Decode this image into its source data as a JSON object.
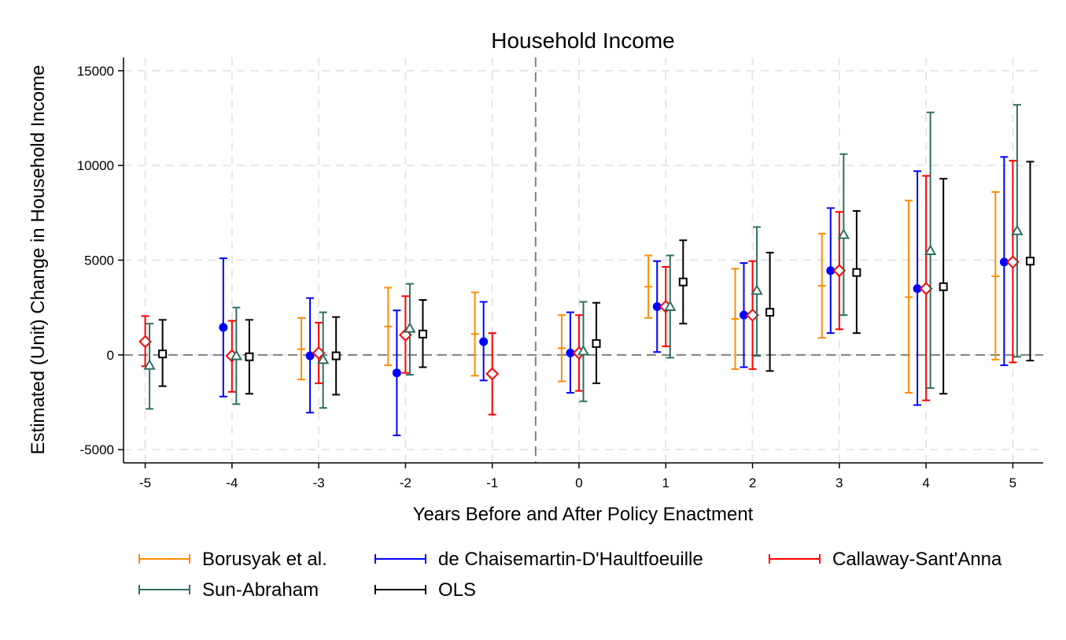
{
  "chart_data": {
    "type": "scatter",
    "subtype": "event-study coefficient plot with confidence intervals",
    "title": "Household Income",
    "xlabel": "Years Before and After Policy Enactment",
    "ylabel": "Estimated (Unit) Change in Household Income",
    "x_ticks": [
      -5,
      -4,
      -3,
      -2,
      -1,
      0,
      1,
      2,
      3,
      4,
      5
    ],
    "y_ticks": [
      -5000,
      0,
      5000,
      10000,
      15000
    ],
    "xlim": [
      -5.25,
      5.35
    ],
    "ylim": [
      -5700,
      15700
    ],
    "grid": true,
    "reference_lines": {
      "horizontal_y": 0,
      "vertical_x": -0.5
    },
    "legend_position": "bottom",
    "series": [
      {
        "name": "Borusyak et al.",
        "color": "#ff8c00",
        "marker": "none",
        "offset": -0.2,
        "points": [
          {
            "x": -3,
            "est": 300,
            "lo": -1300,
            "hi": 1950
          },
          {
            "x": -2,
            "est": 1500,
            "lo": -550,
            "hi": 3550
          },
          {
            "x": -1,
            "est": 1100,
            "lo": -1100,
            "hi": 3300
          },
          {
            "x": 0,
            "est": 350,
            "lo": -1400,
            "hi": 2100
          },
          {
            "x": 1,
            "est": 3600,
            "lo": 1950,
            "hi": 5250
          },
          {
            "x": 2,
            "est": 1900,
            "lo": -750,
            "hi": 4550
          },
          {
            "x": 3,
            "est": 3650,
            "lo": 900,
            "hi": 6400
          },
          {
            "x": 4,
            "est": 3050,
            "lo": -2000,
            "hi": 8150
          },
          {
            "x": 5,
            "est": 4150,
            "lo": -250,
            "hi": 8600
          }
        ]
      },
      {
        "name": "de Chaisemartin-D'Haultfoeuille",
        "color": "#0000ff",
        "marker": "circle",
        "offset": -0.1,
        "points": [
          {
            "x": -4,
            "est": 1450,
            "lo": -2200,
            "hi": 5100
          },
          {
            "x": -3,
            "est": -50,
            "lo": -3050,
            "hi": 3000
          },
          {
            "x": -2,
            "est": -950,
            "lo": -4250,
            "hi": 2350
          },
          {
            "x": -1,
            "est": 700,
            "lo": -1350,
            "hi": 2800
          },
          {
            "x": 0,
            "est": 100,
            "lo": -2000,
            "hi": 2250
          },
          {
            "x": 1,
            "est": 2550,
            "lo": 150,
            "hi": 4950
          },
          {
            "x": 2,
            "est": 2100,
            "lo": -650,
            "hi": 4850
          },
          {
            "x": 3,
            "est": 4450,
            "lo": 1150,
            "hi": 7750
          },
          {
            "x": 4,
            "est": 3500,
            "lo": -2650,
            "hi": 9700
          },
          {
            "x": 5,
            "est": 4900,
            "lo": -550,
            "hi": 10450
          }
        ]
      },
      {
        "name": "Callaway-Sant'Anna",
        "color": "#ff0000",
        "marker": "diamond",
        "offset": 0,
        "points": [
          {
            "x": -5,
            "est": 700,
            "lo": -600,
            "hi": 2050
          },
          {
            "x": -4,
            "est": -50,
            "lo": -1950,
            "hi": 1800
          },
          {
            "x": -3,
            "est": 100,
            "lo": -1500,
            "hi": 1700
          },
          {
            "x": -2,
            "est": 1050,
            "lo": -950,
            "hi": 3100
          },
          {
            "x": -1,
            "est": -1000,
            "lo": -3150,
            "hi": 1150
          },
          {
            "x": 0,
            "est": 100,
            "lo": -1900,
            "hi": 2100
          },
          {
            "x": 1,
            "est": 2550,
            "lo": 450,
            "hi": 4650
          },
          {
            "x": 2,
            "est": 2100,
            "lo": -750,
            "hi": 4950
          },
          {
            "x": 3,
            "est": 4450,
            "lo": 1350,
            "hi": 7550
          },
          {
            "x": 4,
            "est": 3500,
            "lo": -2400,
            "hi": 9450
          },
          {
            "x": 5,
            "est": 4900,
            "lo": -400,
            "hi": 10250
          }
        ]
      },
      {
        "name": "Sun-Abraham",
        "color": "#2e6e63",
        "marker": "triangle",
        "offset": 0.05,
        "points": [
          {
            "x": -5,
            "est": -550,
            "lo": -2850,
            "hi": 1650
          },
          {
            "x": -4,
            "est": -50,
            "lo": -2600,
            "hi": 2500
          },
          {
            "x": -3,
            "est": -250,
            "lo": -2800,
            "hi": 2250
          },
          {
            "x": -2,
            "est": 1400,
            "lo": -1050,
            "hi": 3750
          },
          {
            "x": 0,
            "est": 200,
            "lo": -2450,
            "hi": 2800
          },
          {
            "x": 1,
            "est": 2550,
            "lo": -150,
            "hi": 5250
          },
          {
            "x": 2,
            "est": 3400,
            "lo": -50,
            "hi": 6750
          },
          {
            "x": 3,
            "est": 6350,
            "lo": 2100,
            "hi": 10600
          },
          {
            "x": 4,
            "est": 5500,
            "lo": -1750,
            "hi": 12800
          },
          {
            "x": 5,
            "est": 6550,
            "lo": -100,
            "hi": 13200
          }
        ]
      },
      {
        "name": "OLS",
        "color": "#000000",
        "marker": "square",
        "offset": 0.2,
        "points": [
          {
            "x": -5,
            "est": 50,
            "lo": -1650,
            "hi": 1850
          },
          {
            "x": -4,
            "est": -100,
            "lo": -2050,
            "hi": 1850
          },
          {
            "x": -3,
            "est": -50,
            "lo": -2100,
            "hi": 2000
          },
          {
            "x": -2,
            "est": 1100,
            "lo": -650,
            "hi": 2900
          },
          {
            "x": 0,
            "est": 600,
            "lo": -1500,
            "hi": 2750
          },
          {
            "x": 1,
            "est": 3850,
            "lo": 1650,
            "hi": 6050
          },
          {
            "x": 2,
            "est": 2250,
            "lo": -850,
            "hi": 5400
          },
          {
            "x": 3,
            "est": 4350,
            "lo": 1150,
            "hi": 7600
          },
          {
            "x": 4,
            "est": 3600,
            "lo": -2050,
            "hi": 9300
          },
          {
            "x": 5,
            "est": 4950,
            "lo": -300,
            "hi": 10200
          }
        ]
      }
    ]
  }
}
